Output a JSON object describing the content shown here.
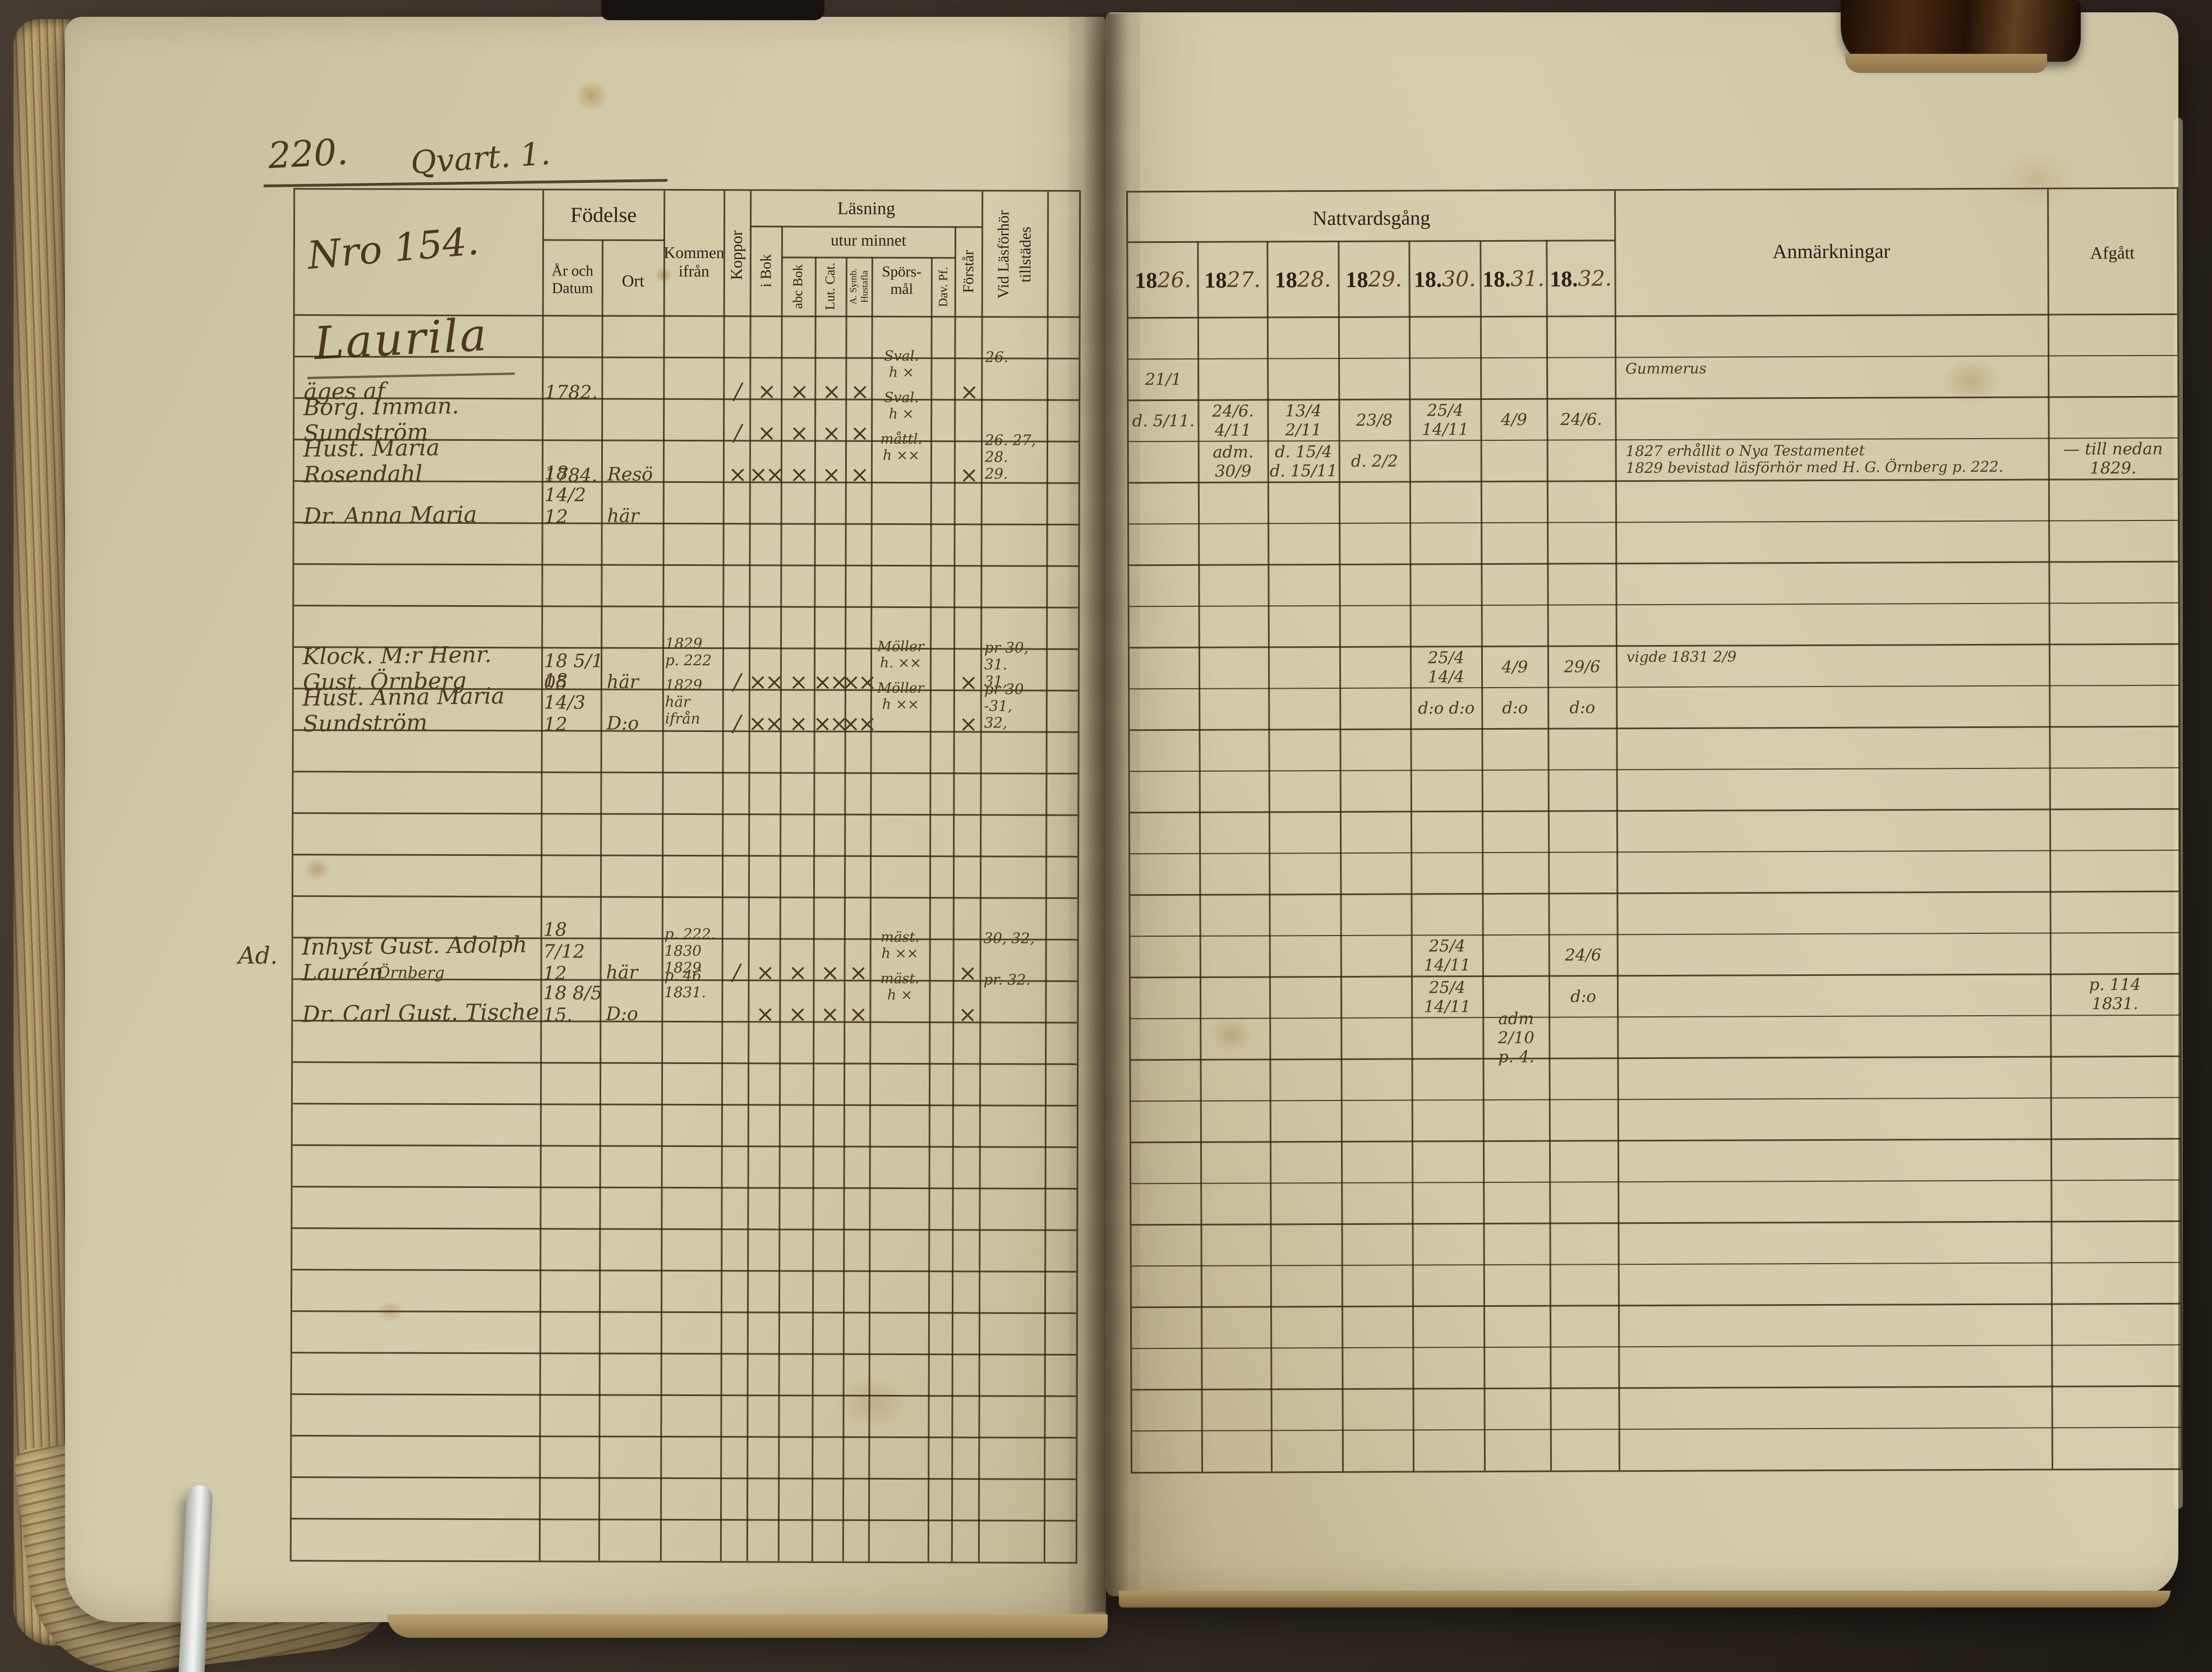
{
  "photo": {
    "background_color": "#342c23",
    "page_color": "#d2cbaa",
    "handwriting_ink": "#4a3920",
    "printed_ink": "#2c2112"
  },
  "left_page": {
    "page_number": "220.",
    "section_title": "Qvart. 1.",
    "record_number": "Nro 154.",
    "family_name": "Laurila",
    "headers": {
      "fodelse": "Födelse",
      "ar_och_datum": "År och|Datum",
      "ort": "Ort",
      "kommen_ifran": "Kommen|ifrån",
      "koppor": "Koppor",
      "lasning": "Läsning",
      "i_bok": "i Bok",
      "utur_minnet": "utur minnet",
      "abc_bok": "abc Bok",
      "lut_cat": "Lut. Cat.",
      "a_symb": "A. Symb.|Hustafla",
      "sporsmal": "Spörs-|mål",
      "dav_pf": "Dav. Pf.",
      "forstar": "Förstår",
      "tillstades": "Vid Läsförhör|tillstädes"
    },
    "rows": {
      "1": {
        "name": "äges af",
        "birth": "1782.",
        "koppor": "∕",
        "ibok": "×",
        "abc": "×",
        "lut": "×",
        "symb": "×",
        "spors": "Sval.|h ×",
        "forst": "×",
        "tillst": "26."
      },
      "2": {
        "name": "Borg. Imman. Sundström",
        "koppor": "∕",
        "ibok": "×",
        "abc": "×",
        "lut": "×",
        "symb": "×",
        "spors": "Sval.|h ×"
      },
      "3": {
        "name": "Hust. Maria Rosendahl",
        "birth": "1784.",
        "ort": "Resö",
        "koppor": "×",
        "ibok": "××",
        "abc": "×",
        "lut": "×",
        "symb": "×",
        "spors": "måttl.|h ××",
        "forst": "×",
        "tillst": "26. 27, 28.|29."
      },
      "4": {
        "name": "Dr. Anna Maria",
        "birth": "18 14/2 12",
        "ort": "här"
      },
      "8": {
        "name": "Klock. M:r Henr. Gust. Örnberg",
        "birth": "18 5/1 05",
        "ort": "här",
        "kommen": "1829|p. 222",
        "koppor": "∕",
        "ibok": "××",
        "abc": "×",
        "lut": "××",
        "symb": "××",
        "spors": "Möller|h. ××",
        "forst": "×",
        "tillst": "pr 30, 31.|31,"
      },
      "9": {
        "name": "Hust. Anna Maria Sundström",
        "birth": "18 14/3 12",
        "ort": "D:o",
        "kommen": "1829|här ifrån",
        "koppor": "∕",
        "ibok": "××",
        "abc": "×",
        "lut": "××",
        "symb": "××",
        "spors": "Möller|h ××",
        "forst": "×",
        "tillst": "pr 30 -31,|32,"
      },
      "15": {
        "margin": "Ad.",
        "name": "Inhyst Gust. Adolph Laurén",
        "birth": "18 7/12 12",
        "ort": "här",
        "kommen": "p. 222. 1830|1829",
        "koppor": "∕",
        "ibok": "×",
        "abc": "×",
        "lut": "×",
        "symb": "×",
        "spors": "mäst.|h ××",
        "forst": "×",
        "tillst": "30, 32,"
      },
      "16": {
        "name": "Dr. Carl Gust. Tische",
        "name_above": "Örnberg",
        "birth": "18 8/5 15.",
        "ort": "D:o",
        "kommen": "p. 46|1831.",
        "ibok": "×",
        "abc": "×",
        "lut": "×",
        "symb": "×",
        "spors": "mäst.|h ×",
        "forst": "×",
        "tillst": "pr. 32."
      }
    }
  },
  "right_page": {
    "headers": {
      "nattvardsgang": "Nattvardsgång",
      "years": [
        {
          "printed": "18",
          "hand": "26."
        },
        {
          "printed": "18",
          "hand": "27."
        },
        {
          "printed": "18",
          "hand": "28."
        },
        {
          "printed": "18",
          "hand": "29."
        },
        {
          "printed": "18.",
          "hand": "30."
        },
        {
          "printed": "18.",
          "hand": "31."
        },
        {
          "printed": "18.",
          "hand": "32."
        }
      ],
      "anmarkningar": "Anmärkningar",
      "afgatt": "Afgått"
    },
    "rows": {
      "1": {
        "y1826": "21/1",
        "anm": "Gummerus"
      },
      "2": {
        "y1826": "d. 5/11.",
        "y1827": "24/6. 4/11",
        "y1828": "13/4 2/11",
        "y1829": "23/8",
        "y1830": "25/4 14/11",
        "y1831": "4/9",
        "y1832": "24/6."
      },
      "3": {
        "y1827": "adm. 30/9",
        "y1828": "d. 15/4 d. 15/11",
        "y1829": "d. 2/2",
        "anm": "1827 erhållit o Nya Testamentet|1829 bevistad läsförhör med H. G. Örnberg p. 222.",
        "afgatt": "— till nedan|1829."
      },
      "8": {
        "y1830": "25/4 14/4",
        "y1831": "4/9",
        "y1832": "29/6",
        "anm": "vigde 1831 2/9"
      },
      "9": {
        "y1830": "d:o d:o",
        "y1831": "d:o",
        "y1832": "d:o"
      },
      "15": {
        "y1830": "25/4 14/11",
        "y1832": "24/6"
      },
      "16": {
        "y1830": "25/4 14/11",
        "y1832": "d:o",
        "afgatt": "p. 114|1831."
      },
      "17": {
        "y1831": "adm 2/10|p. 4."
      }
    }
  }
}
